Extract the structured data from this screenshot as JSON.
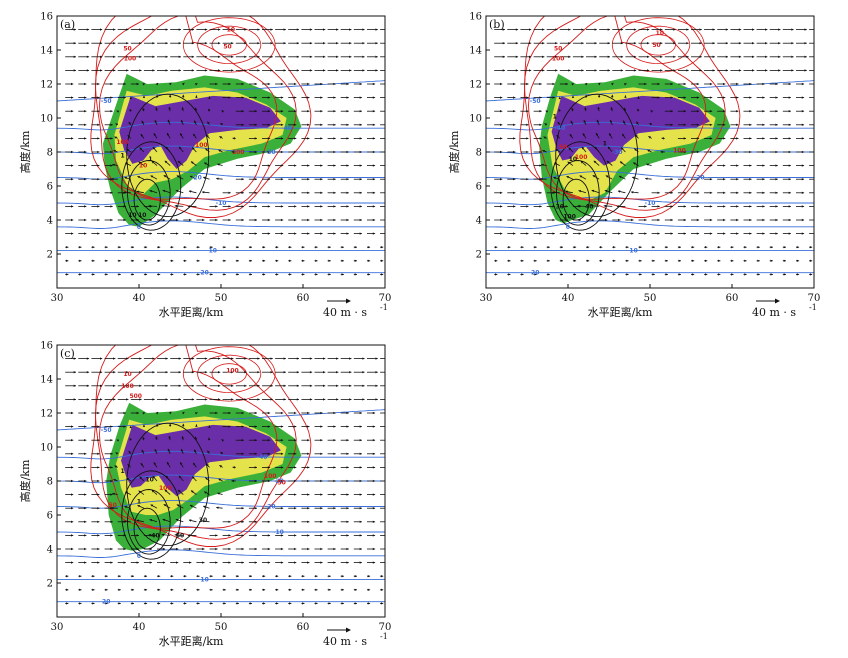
{
  "colors": {
    "band1": "#3ab03a",
    "band2": "#e5e34b",
    "band3": "#6a2fa8",
    "temperature": "#3a6fd8",
    "reflectivity": "#d61a1a",
    "vertical_velocity": "#111111",
    "vectors": "#111111"
  },
  "reference_vector": {
    "label": "40  m · s",
    "exponent": "-1"
  },
  "chart_data": [
    {
      "type": "vertical-cross-section",
      "panel_label": "(a)",
      "xlabel": "水平距离/km",
      "ylabel": "高度/km",
      "xlim": [
        30,
        70
      ],
      "ylim": [
        0,
        16
      ],
      "xticks": [
        30,
        40,
        50,
        60,
        70
      ],
      "yticks": [
        2,
        4,
        6,
        8,
        10,
        12,
        14,
        16
      ],
      "temperature_lines": [
        {
          "label": "20",
          "y_base": 0.9,
          "label_x": 48
        },
        {
          "label": "10",
          "y_base": 2.2,
          "label_x": 49
        },
        {
          "label": "0",
          "y_base": 3.6,
          "label_x": 40
        },
        {
          "label": "-10",
          "y_base": 5.0,
          "label_x": 50
        },
        {
          "label": "-20",
          "y_base": 6.5,
          "label_x": 47
        },
        {
          "label": "-30",
          "y_base": 8.0,
          "label_x": 56
        },
        {
          "label": "-40",
          "y_base": 9.4,
          "label_x": 58
        },
        {
          "label": "-50",
          "y_base": 11.0,
          "label_x": 36
        }
      ],
      "shading_regions": [
        {
          "x": [
            36.3,
            37.5,
            38.5,
            41,
            44.5,
            48,
            52,
            56,
            59,
            59.8,
            58.5,
            56,
            52,
            48,
            45,
            42,
            40,
            38.8,
            37.5,
            36.5,
            35.8,
            35.6
          ],
          "y": [
            9.5,
            11.2,
            12.6,
            12.0,
            12.1,
            12.5,
            12.3,
            11.5,
            10.5,
            9.5,
            8.5,
            8.0,
            7.6,
            7.0,
            5.8,
            4.3,
            3.6,
            3.7,
            4.4,
            5.8,
            7.2,
            8.5
          ]
        },
        {
          "x": [
            37,
            38.5,
            41,
            44,
            48,
            52,
            55.5,
            58,
            57.5,
            55,
            51,
            48,
            46,
            44,
            42,
            40.5,
            38.6,
            37.2
          ],
          "y": [
            9.0,
            11.6,
            11.3,
            11.6,
            11.8,
            11.5,
            10.8,
            10.0,
            9.0,
            8.5,
            8.1,
            7.7,
            6.9,
            6.4,
            6.2,
            5.5,
            6.0,
            7.5
          ]
        },
        {
          "x": [
            37.6,
            39,
            42,
            45.5,
            49,
            53,
            56,
            57.3,
            55.5,
            52,
            48.6,
            46.8,
            45.8,
            44.6,
            43.5,
            42.6,
            41.5,
            40.5,
            39.2,
            38.2
          ],
          "y": [
            9.2,
            11.3,
            10.7,
            11.0,
            11.3,
            11.2,
            10.6,
            9.8,
            9.4,
            9.3,
            9.1,
            8.4,
            7.5,
            7.0,
            7.6,
            8.4,
            8.1,
            7.5,
            7.3,
            8.1
          ]
        }
      ],
      "reflectivity_labels": [
        {
          "x": 38.6,
          "y": 14.1,
          "label": "50"
        },
        {
          "x": 38.9,
          "y": 13.5,
          "label": "100"
        },
        {
          "x": 38.0,
          "y": 8.6,
          "label": "100"
        },
        {
          "x": 40.5,
          "y": 7.2,
          "label": "10"
        },
        {
          "x": 52.1,
          "y": 8.0,
          "label": "100"
        },
        {
          "x": 47.6,
          "y": 8.4,
          "label": "100"
        },
        {
          "x": 50.8,
          "y": 14.2,
          "label": "50"
        },
        {
          "x": 51.2,
          "y": 15.2,
          "label": "10"
        }
      ],
      "vertical_velocity_labels": [
        {
          "x": 38.0,
          "y": 7.8,
          "label": "1"
        },
        {
          "x": 41.4,
          "y": 7.6,
          "label": "1"
        },
        {
          "x": 40.4,
          "y": 4.3,
          "label": "10"
        },
        {
          "x": 39.2,
          "y": 4.3,
          "label": "10"
        }
      ]
    },
    {
      "type": "vertical-cross-section",
      "panel_label": "(b)",
      "xlabel": "水平距离/km",
      "ylabel": "高度/km",
      "xlim": [
        30,
        70
      ],
      "ylim": [
        0,
        16
      ],
      "xticks": [
        30,
        40,
        50,
        60,
        70
      ],
      "yticks": [
        2,
        4,
        6,
        8,
        10,
        12,
        14,
        16
      ],
      "temperature_lines": [
        {
          "label": "20",
          "y_base": 0.9,
          "label_x": 36
        },
        {
          "label": "10",
          "y_base": 2.2,
          "label_x": 48
        },
        {
          "label": "0",
          "y_base": 3.6,
          "label_x": 40
        },
        {
          "label": "-10",
          "y_base": 5.0,
          "label_x": 50
        },
        {
          "label": "-20",
          "y_base": 6.5,
          "label_x": 56
        },
        {
          "label": "-30",
          "y_base": 8.0,
          "label_x": 46
        },
        {
          "label": "-40",
          "y_base": 9.4,
          "label_x": 39
        },
        {
          "label": "-50",
          "y_base": 11.0,
          "label_x": 36
        }
      ],
      "shading_regions": [
        {
          "x": [
            36.8,
            37.8,
            38.8,
            41,
            44.5,
            48,
            52,
            56,
            59,
            59.8,
            58.5,
            56,
            52,
            48,
            45,
            42.5,
            40.5,
            39.5,
            38.5,
            37.5,
            36.8,
            36.5
          ],
          "y": [
            9.5,
            11.2,
            12.6,
            12.0,
            12.1,
            12.5,
            12.3,
            11.5,
            10.5,
            9.5,
            8.5,
            8.0,
            7.6,
            7.0,
            5.6,
            4.3,
            4.0,
            3.8,
            4.0,
            5.0,
            6.5,
            8.3
          ]
        },
        {
          "x": [
            37.5,
            38.8,
            41,
            44,
            48,
            52,
            55.5,
            58,
            57.5,
            55,
            51,
            48,
            46,
            44.5,
            42.8,
            41.2,
            39.6,
            38.1
          ],
          "y": [
            9.0,
            11.6,
            11.3,
            11.6,
            11.8,
            11.5,
            10.8,
            10.0,
            9.0,
            8.5,
            8.1,
            7.7,
            6.9,
            5.6,
            5.2,
            5.3,
            5.8,
            7.2
          ]
        },
        {
          "x": [
            38.0,
            39.2,
            42,
            45.5,
            49,
            53,
            56,
            57.3,
            55.5,
            52,
            48.6,
            46.8,
            45.8,
            44.4,
            43.2,
            42.2,
            41.3,
            40.3,
            39.3,
            38.6
          ],
          "y": [
            9.2,
            11.3,
            10.7,
            11.0,
            11.3,
            11.2,
            10.6,
            9.8,
            9.4,
            9.3,
            9.1,
            8.4,
            7.5,
            7.2,
            7.7,
            8.3,
            8.2,
            7.6,
            7.5,
            8.2
          ]
        }
      ],
      "reflectivity_labels": [
        {
          "x": 38.8,
          "y": 14.1,
          "label": "50"
        },
        {
          "x": 38.8,
          "y": 13.5,
          "label": "100"
        },
        {
          "x": 39.4,
          "y": 8.3,
          "label": "50"
        },
        {
          "x": 41.6,
          "y": 7.7,
          "label": "100"
        },
        {
          "x": 53.6,
          "y": 8.1,
          "label": "100"
        },
        {
          "x": 50.8,
          "y": 14.3,
          "label": "50"
        },
        {
          "x": 51.2,
          "y": 15.0,
          "label": "10"
        }
      ],
      "vertical_velocity_labels": [
        {
          "x": 38.4,
          "y": 10.1,
          "label": "1"
        },
        {
          "x": 44.5,
          "y": 8.5,
          "label": "1"
        },
        {
          "x": 40.6,
          "y": 7.6,
          "label": "10"
        },
        {
          "x": 39.0,
          "y": 4.8,
          "label": "30"
        },
        {
          "x": 40.2,
          "y": 4.2,
          "label": "100"
        },
        {
          "x": 42.6,
          "y": 4.8,
          "label": "40"
        }
      ]
    },
    {
      "type": "vertical-cross-section",
      "panel_label": "(c)",
      "xlabel": "水平距离/km",
      "ylabel": "高度/km",
      "xlim": [
        30,
        70
      ],
      "ylim": [
        0,
        16
      ],
      "xticks": [
        30,
        40,
        50,
        60,
        70
      ],
      "yticks": [
        2,
        4,
        6,
        8,
        10,
        12,
        14,
        16
      ],
      "temperature_lines": [
        {
          "label": "20",
          "y_base": 0.9,
          "label_x": 36
        },
        {
          "label": "10",
          "y_base": 2.2,
          "label_x": 48
        },
        {
          "label": "0",
          "y_base": 3.6,
          "label_x": 40
        },
        {
          "label": "-10",
          "y_base": 5.0,
          "label_x": 57
        },
        {
          "label": "-20",
          "y_base": 6.5,
          "label_x": 56
        },
        {
          "label": "-30",
          "y_base": 8.0,
          "label_x": 57
        },
        {
          "label": "-40",
          "y_base": 9.4,
          "label_x": 55
        },
        {
          "label": "-50",
          "y_base": 11.0,
          "label_x": 36
        }
      ],
      "shading_regions": [
        {
          "x": [
            36.5,
            37.6,
            38.8,
            41,
            44.5,
            48,
            52,
            56,
            59,
            59.8,
            58.5,
            56,
            52,
            48,
            45,
            42.5,
            40.5,
            39.2,
            38.2,
            37.2,
            36.3,
            36.0
          ],
          "y": [
            9.5,
            11.2,
            12.6,
            12.0,
            12.1,
            12.5,
            12.3,
            11.5,
            10.5,
            9.5,
            8.5,
            8.0,
            7.6,
            7.0,
            5.8,
            4.5,
            4.0,
            3.9,
            4.0,
            4.5,
            6.0,
            8.0
          ]
        },
        {
          "x": [
            37.2,
            38.8,
            41,
            44,
            48,
            52,
            55.5,
            58,
            57.5,
            55,
            51,
            48,
            46,
            44.2,
            42.3,
            40.8,
            39.0,
            37.8
          ],
          "y": [
            9.0,
            11.6,
            11.3,
            11.6,
            11.8,
            11.5,
            10.8,
            10.0,
            9.0,
            8.5,
            8.1,
            7.7,
            6.9,
            6.3,
            6.0,
            6.0,
            6.2,
            7.6
          ]
        },
        {
          "x": [
            37.8,
            39.2,
            42,
            45.5,
            49,
            53,
            56,
            57.3,
            55.5,
            52,
            48.6,
            46.8,
            45.8,
            44.6,
            43.4,
            42.4,
            41.3,
            40.2,
            39.1,
            38.4
          ],
          "y": [
            9.2,
            11.3,
            10.7,
            11.0,
            11.3,
            11.2,
            10.6,
            9.8,
            9.4,
            9.3,
            9.1,
            8.4,
            7.5,
            7.1,
            7.6,
            8.3,
            8.2,
            7.7,
            7.6,
            8.3
          ]
        }
      ],
      "reflectivity_labels": [
        {
          "x": 38.6,
          "y": 14.3,
          "label": "10"
        },
        {
          "x": 38.6,
          "y": 13.6,
          "label": "100"
        },
        {
          "x": 39.6,
          "y": 13.0,
          "label": "500"
        },
        {
          "x": 36.8,
          "y": 6.6,
          "label": "50"
        },
        {
          "x": 43.2,
          "y": 7.6,
          "label": "100"
        },
        {
          "x": 56.0,
          "y": 8.3,
          "label": "100"
        },
        {
          "x": 57.4,
          "y": 7.9,
          "label": "50"
        },
        {
          "x": 51.4,
          "y": 14.5,
          "label": "100"
        }
      ],
      "vertical_velocity_labels": [
        {
          "x": 38.0,
          "y": 8.6,
          "label": "1"
        },
        {
          "x": 41.3,
          "y": 8.1,
          "label": "10"
        },
        {
          "x": 40.0,
          "y": 6.8,
          "label": "1"
        },
        {
          "x": 42.0,
          "y": 4.8,
          "label": "40"
        },
        {
          "x": 45.0,
          "y": 4.8,
          "label": "50"
        },
        {
          "x": 47.8,
          "y": 5.7,
          "label": "30"
        }
      ]
    }
  ]
}
